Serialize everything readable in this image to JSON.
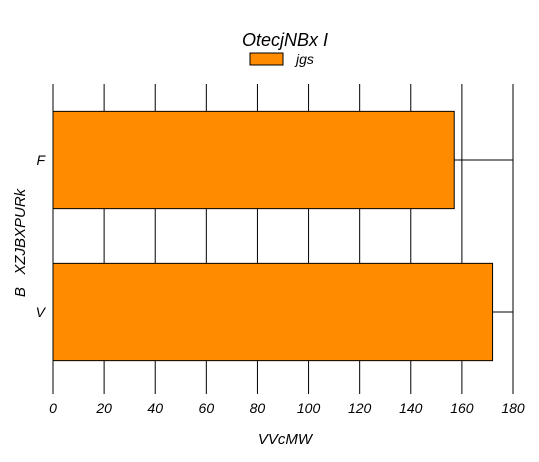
{
  "chart_data": {
    "type": "bar",
    "orientation": "horizontal",
    "title": "OtecjNBx I",
    "xlabel": "VVcMW",
    "ylabel": "B   XZJBXPURk",
    "categories": [
      "F",
      "V"
    ],
    "series": [
      {
        "name": "jgs",
        "values": [
          157,
          172
        ],
        "color": "#ff8c00"
      }
    ],
    "xlim": [
      0,
      180
    ],
    "xticks": [
      0,
      20,
      40,
      60,
      80,
      100,
      120,
      140,
      160,
      180
    ],
    "grid": "vertical",
    "legend_position": "top-center",
    "error_bar_upper": 180
  }
}
